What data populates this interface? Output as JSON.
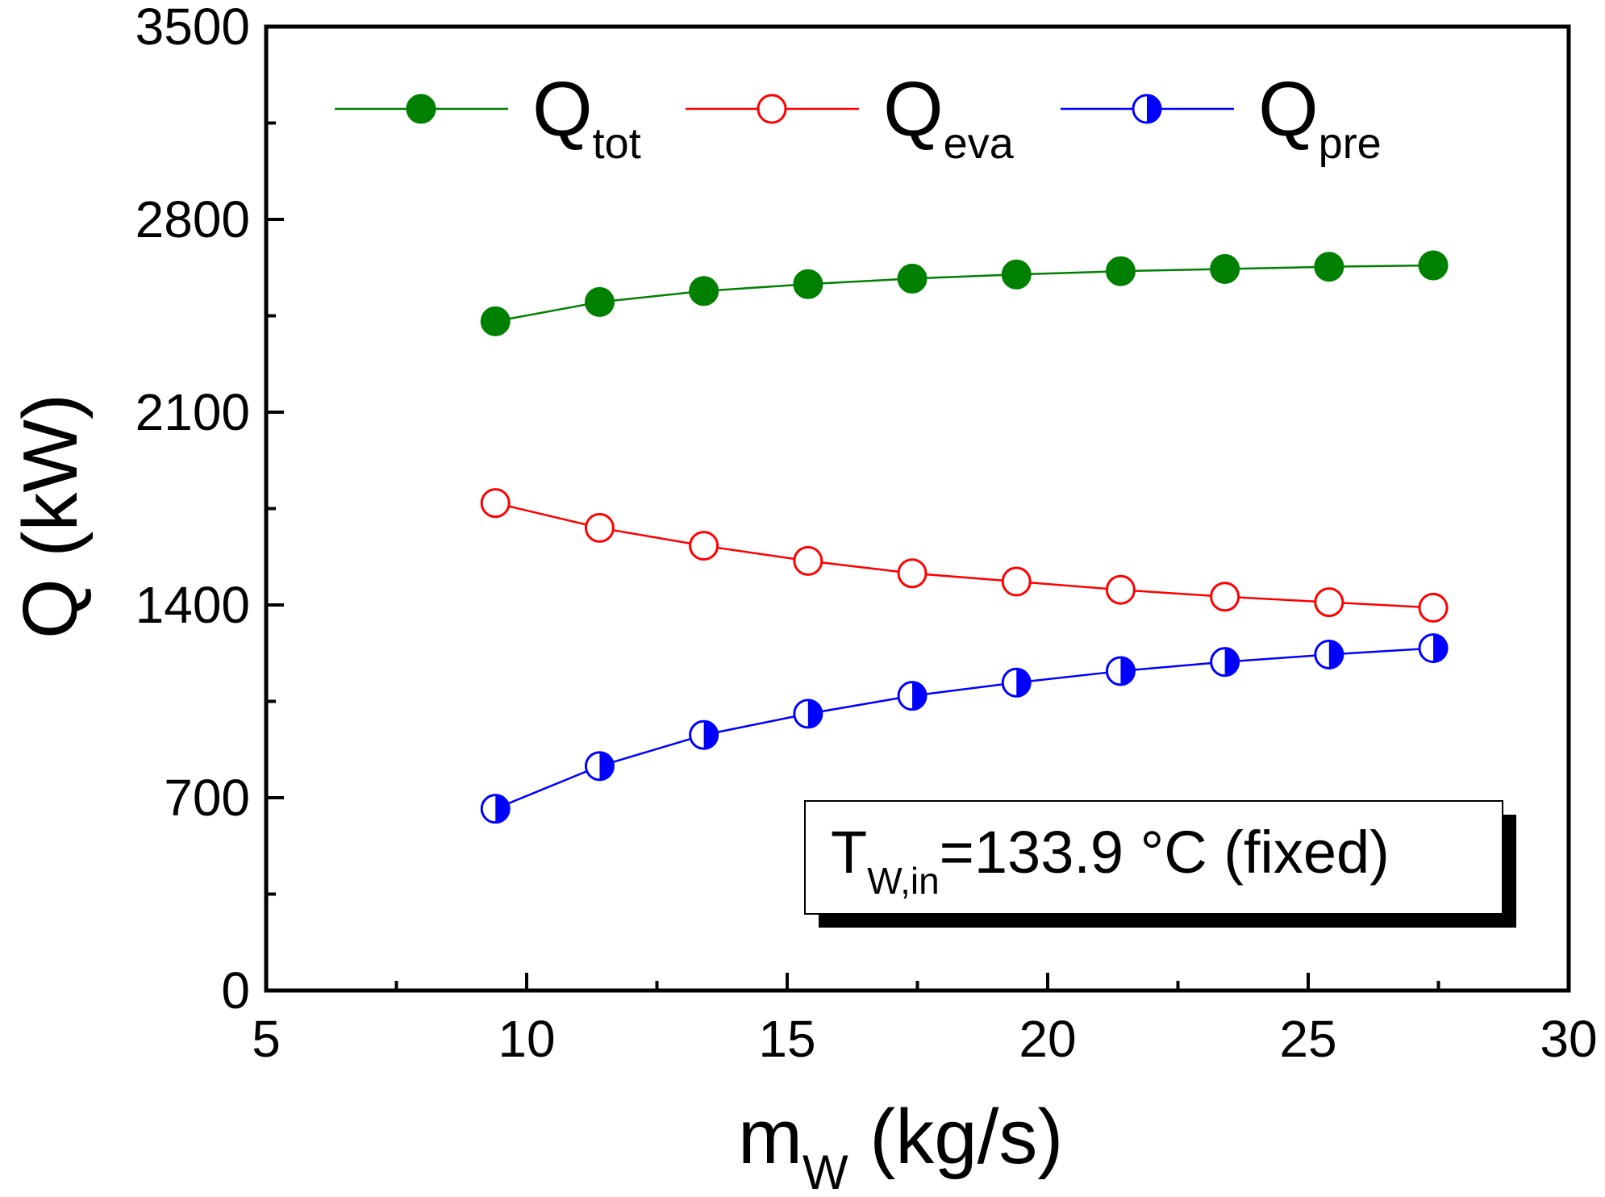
{
  "chart_data": {
    "type": "line",
    "x": [
      9.4,
      11.4,
      13.4,
      15.4,
      17.4,
      19.4,
      21.4,
      23.4,
      25.4,
      27.4
    ],
    "series": [
      {
        "name": "Q_tot",
        "label_main": "Q",
        "label_sub": "tot",
        "color": "#008000",
        "marker": "filled-circle",
        "values": [
          2430,
          2500,
          2540,
          2565,
          2585,
          2600,
          2612,
          2620,
          2628,
          2633
        ]
      },
      {
        "name": "Q_eva",
        "label_main": "Q",
        "label_sub": "eva",
        "color": "#ff0000",
        "marker": "open-circle",
        "values": [
          1770,
          1680,
          1615,
          1560,
          1515,
          1485,
          1455,
          1430,
          1410,
          1390
        ]
      },
      {
        "name": "Q_pre",
        "label_main": "Q",
        "label_sub": "pre",
        "color": "#0000ff",
        "marker": "half-filled-circle",
        "values": [
          660,
          815,
          928,
          1005,
          1070,
          1118,
          1160,
          1193,
          1220,
          1243
        ]
      }
    ],
    "xlabel": {
      "main": "m",
      "sub": "W",
      "rest": " (kg/s)"
    },
    "ylabel": "Q (kW)",
    "xlim": [
      5,
      30
    ],
    "ylim": [
      0,
      3500
    ],
    "xticks": [
      5,
      10,
      15,
      20,
      25,
      30
    ],
    "xtick_labels": [
      "5",
      "10",
      "15",
      "20",
      "25",
      "30"
    ],
    "yticks": [
      0,
      700,
      1400,
      2100,
      2800,
      3500
    ],
    "ytick_labels": [
      "0",
      "700",
      "1400",
      "2100",
      "2800",
      "3500"
    ],
    "legend_position": "top",
    "grid": false,
    "annotation": {
      "main": "T",
      "sub": "W,in",
      "rest": "=133.9 °C (fixed)"
    }
  }
}
